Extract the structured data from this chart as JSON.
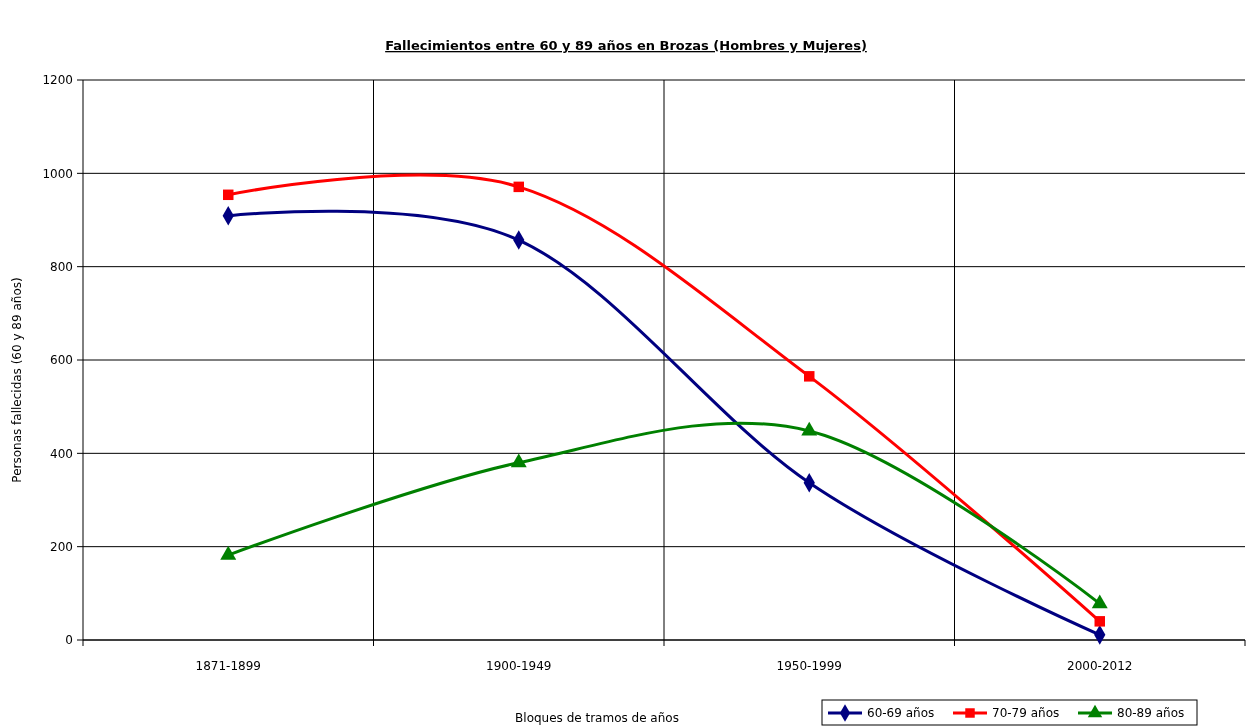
{
  "chart_data": {
    "type": "line",
    "title": "Fallecimientos entre 60 y 89 años en Brozas (Hombres y Mujeres)",
    "xlabel": "Bloques de tramos de años",
    "ylabel": "Personas fallecidas (60 y 89 años)",
    "categories": [
      "1871-1899",
      "1900-1949",
      "1950-1999",
      "2000-2012"
    ],
    "ylim": [
      0,
      1200
    ],
    "yticks": [
      0,
      200,
      400,
      600,
      800,
      1000,
      1200
    ],
    "grid": true,
    "legend": "bottom right",
    "series": [
      {
        "name": "60-69 años",
        "color": "#000080",
        "marker": "diamond",
        "values": [
          909,
          857,
          337,
          11
        ]
      },
      {
        "name": "70-79 años",
        "color": "#ff0000",
        "marker": "square",
        "values": [
          954,
          971,
          565,
          40
        ]
      },
      {
        "name": "80-89 años",
        "color": "#008000",
        "marker": "triangle",
        "values": [
          182,
          380,
          448,
          78
        ]
      }
    ]
  }
}
